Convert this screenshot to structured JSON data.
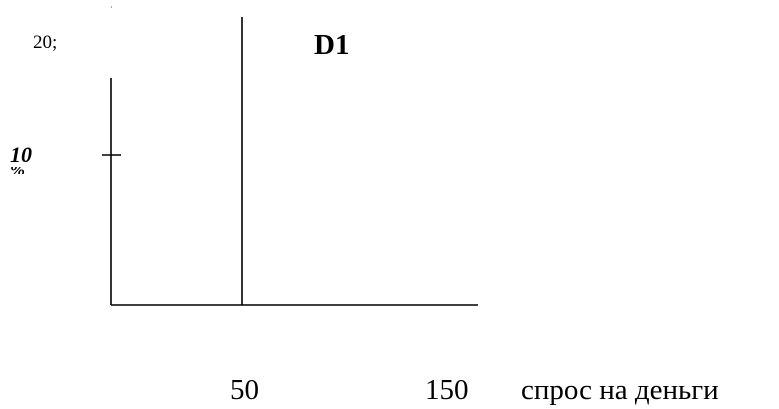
{
  "labels": {
    "top_value": "20;",
    "y_value": "10",
    "y_value_suffix": "%",
    "curve": "D1",
    "x_values": [
      "50",
      "150"
    ],
    "x_title": "спрос на деньги"
  }
}
